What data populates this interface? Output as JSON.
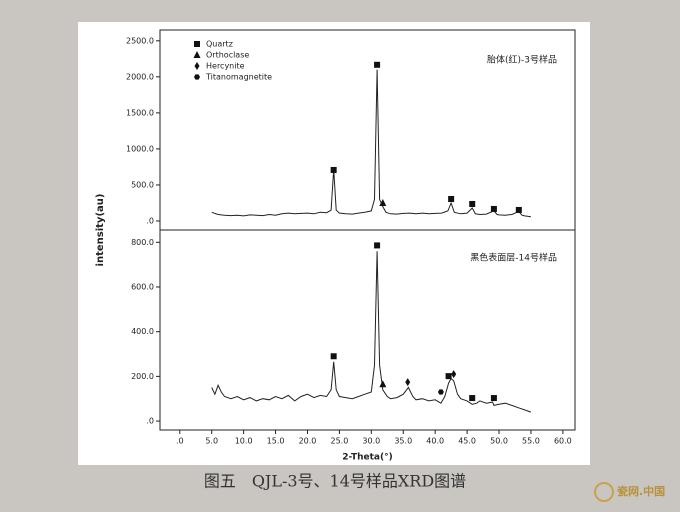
{
  "caption": "图五　QJL-3号、14号样品XRD图谱",
  "watermark": "瓷网.中国",
  "ylabel": "intensity(au)",
  "chart_data": [
    {
      "type": "line",
      "label": "胎体(红)-3号样品",
      "xlim": [
        -3.1,
        61.9
      ],
      "ylim": [
        -125,
        2650
      ],
      "yticks": [
        {
          "value": 0,
          "label": ".0"
        },
        {
          "value": 500,
          "label": "500.0"
        },
        {
          "value": 1000,
          "label": "1000.0"
        },
        {
          "value": 1500,
          "label": "1500.0"
        },
        {
          "value": 2000,
          "label": "2000.0"
        },
        {
          "value": 2500,
          "label": "2500.0"
        }
      ],
      "series": [
        {
          "color": "#222222",
          "x": [
            5,
            6,
            7,
            8,
            9,
            10,
            11,
            12,
            13,
            14,
            15,
            16,
            17,
            18,
            19,
            20,
            21,
            22,
            23,
            23.7,
            24.1,
            24.5,
            25,
            26,
            27,
            28,
            29,
            30,
            30.5,
            30.9,
            31.3,
            31.8,
            32.3,
            33,
            34,
            35,
            36,
            37,
            38,
            39,
            40,
            41,
            42,
            42.5,
            43,
            44,
            45,
            45.8,
            46.3,
            47,
            48,
            49.2,
            49.7,
            50,
            51,
            52,
            53.1,
            53.6,
            54,
            55
          ],
          "values": [
            120,
            90,
            80,
            75,
            80,
            70,
            85,
            80,
            75,
            90,
            80,
            100,
            110,
            100,
            105,
            110,
            100,
            120,
            115,
            150,
            720,
            150,
            110,
            100,
            95,
            110,
            120,
            140,
            300,
            2100,
            300,
            200,
            120,
            100,
            95,
            105,
            110,
            100,
            110,
            100,
            105,
            110,
            140,
            250,
            120,
            100,
            110,
            180,
            100,
            90,
            95,
            140,
            90,
            85,
            80,
            90,
            130,
            80,
            70,
            60
          ]
        }
      ],
      "markers": [
        {
          "name": "Quartz",
          "marker": "square",
          "x": [
            24.1,
            30.9,
            42.5,
            45.8,
            49.2,
            53.1
          ],
          "y": [
            708,
            2167,
            305,
            236,
            167,
            153
          ]
        },
        {
          "name": "Orthoclase",
          "marker": "triangle",
          "x": [
            31.8
          ],
          "y": [
            250
          ]
        },
        {
          "name": "Hercynite",
          "marker": "diamond",
          "x": [],
          "y": []
        },
        {
          "name": "Titanomagnetite",
          "marker": "hexagon",
          "x": [],
          "y": []
        }
      ]
    },
    {
      "type": "line",
      "label": "黑色表面层-14号样品",
      "xlabel": "2-Theta(°)",
      "xlim": [
        -3.1,
        61.9
      ],
      "ylim": [
        -40,
        855
      ],
      "xticks": [
        {
          "value": 0,
          "label": ".0"
        },
        {
          "value": 5,
          "label": "5.0"
        },
        {
          "value": 10,
          "label": "10.0"
        },
        {
          "value": 15,
          "label": "15.0"
        },
        {
          "value": 20,
          "label": "20.0"
        },
        {
          "value": 25,
          "label": "25.0"
        },
        {
          "value": 30,
          "label": "30.0"
        },
        {
          "value": 35,
          "label": "35.0"
        },
        {
          "value": 40,
          "label": "40.0"
        },
        {
          "value": 45,
          "label": "45.0"
        },
        {
          "value": 50,
          "label": "50.0"
        },
        {
          "value": 55,
          "label": "55.0"
        },
        {
          "value": 60,
          "label": "60.0"
        }
      ],
      "yticks": [
        {
          "value": 0,
          "label": ".0"
        },
        {
          "value": 200,
          "label": "200.0"
        },
        {
          "value": 400,
          "label": "400.0"
        },
        {
          "value": 600,
          "label": "600.0"
        },
        {
          "value": 800,
          "label": "800.0"
        }
      ],
      "series": [
        {
          "color": "#222222",
          "x": [
            5,
            5.5,
            6,
            6.5,
            7,
            8,
            9,
            10,
            11,
            12,
            13,
            14,
            15,
            16,
            17,
            18,
            19,
            20,
            21,
            22,
            23,
            23.7,
            24.1,
            24.5,
            25,
            26,
            27,
            28,
            29,
            30,
            30.5,
            30.9,
            31.3,
            31.8,
            32.5,
            33,
            34,
            35,
            35.8,
            36.5,
            37,
            38,
            39,
            40,
            40.9,
            41.5,
            42.1,
            42.5,
            42.9,
            43.5,
            44,
            45,
            45.8,
            46.5,
            47,
            48,
            49,
            49.2,
            50,
            51,
            52,
            53,
            54,
            55
          ],
          "values": [
            150,
            120,
            160,
            130,
            110,
            100,
            110,
            95,
            105,
            90,
            100,
            95,
            110,
            100,
            115,
            90,
            110,
            120,
            105,
            115,
            110,
            140,
            265,
            140,
            110,
            105,
            100,
            110,
            120,
            130,
            250,
            760,
            250,
            140,
            110,
            100,
            105,
            120,
            150,
            110,
            95,
            100,
            90,
            95,
            80,
            110,
            170,
            190,
            180,
            120,
            100,
            90,
            75,
            80,
            90,
            80,
            85,
            70,
            75,
            80,
            70,
            60,
            50,
            40
          ]
        }
      ],
      "markers": [
        {
          "marker": "square",
          "x": [
            24.1,
            30.9,
            42.1,
            45.8,
            49.2
          ],
          "y": [
            290,
            786,
            201,
            103,
            103
          ]
        },
        {
          "marker": "triangle",
          "x": [
            31.8
          ],
          "y": [
            165
          ]
        },
        {
          "marker": "diamond",
          "x": [
            35.7,
            42.9
          ],
          "y": [
            174,
            210
          ]
        },
        {
          "marker": "hexagon",
          "x": [
            40.9
          ],
          "y": [
            130
          ]
        }
      ]
    }
  ]
}
